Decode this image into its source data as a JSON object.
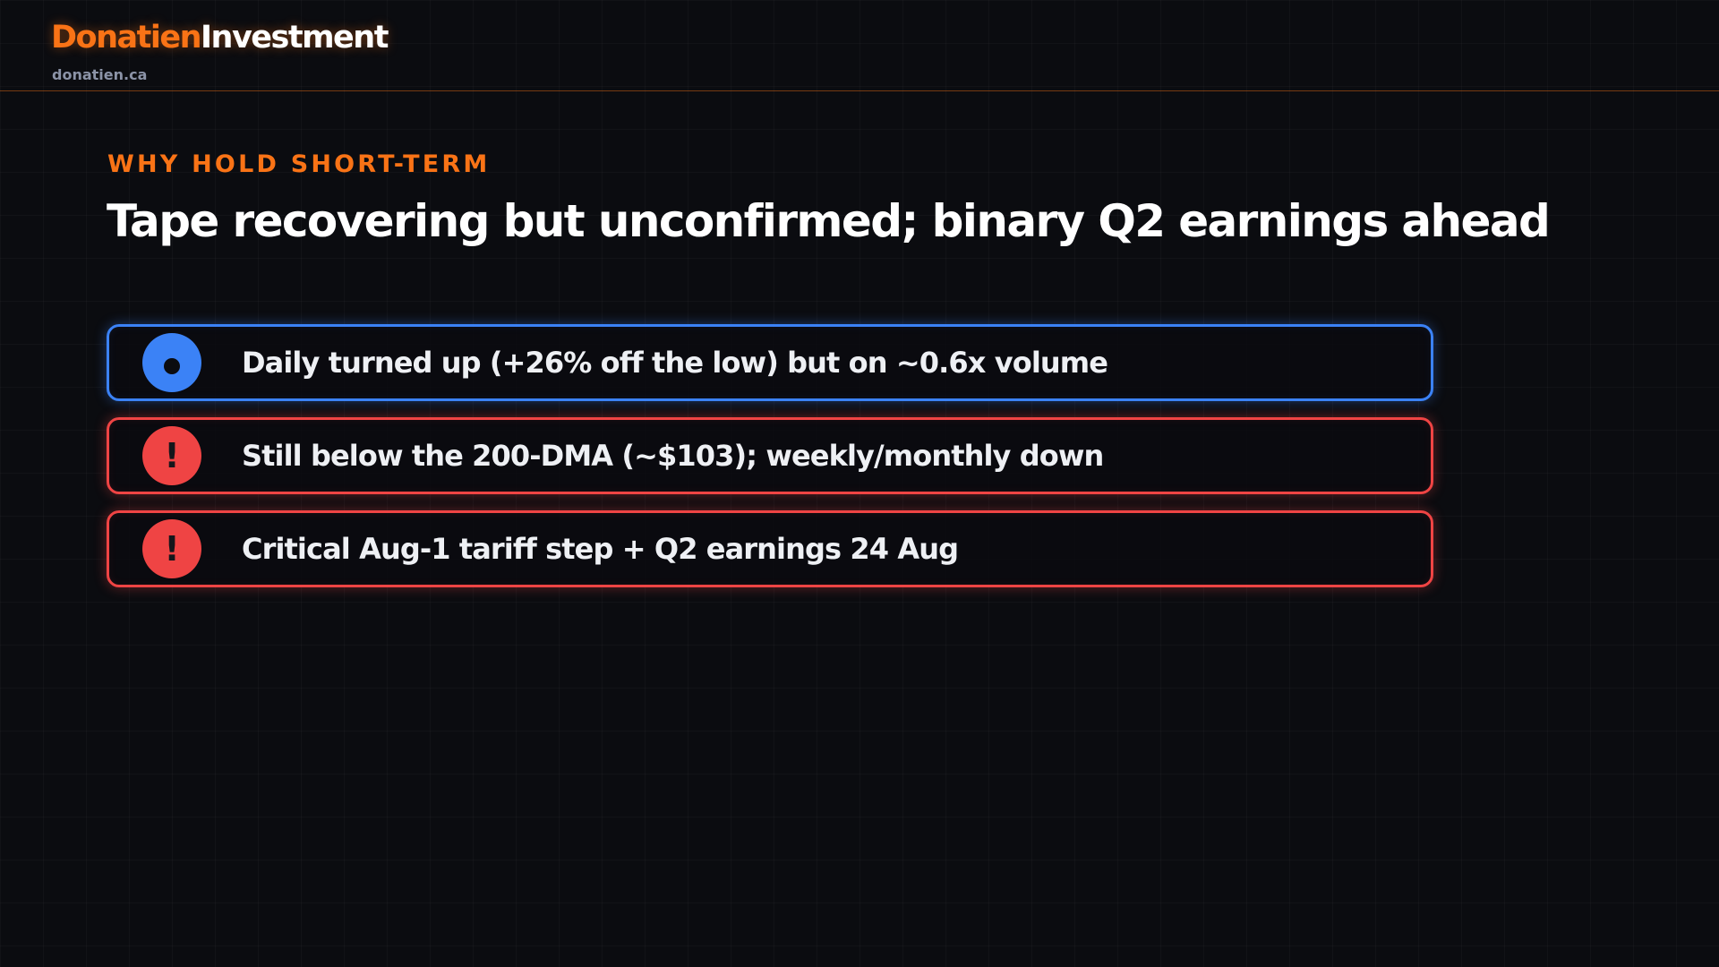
{
  "header": {
    "brand_primary": "Donatien",
    "brand_secondary": "Investment",
    "site": "donatien.ca"
  },
  "slide": {
    "eyebrow": "WHY HOLD SHORT-TERM",
    "title": "Tape recovering but unconfirmed; binary Q2 earnings ahead",
    "items": [
      {
        "kind": "info",
        "icon": "dot-icon",
        "text": "Daily turned up (+26% off the low) but on ~0.6x volume"
      },
      {
        "kind": "warning",
        "icon": "exclamation-icon",
        "symbol": "!",
        "text": "Still below the 200-DMA (~$103); weekly/monthly down"
      },
      {
        "kind": "warning",
        "icon": "exclamation-icon",
        "symbol": "!",
        "text": "Critical Aug-1 tariff step + Q2 earnings 24 Aug"
      }
    ]
  },
  "colors": {
    "accent": "#f97316",
    "info": "#3b82f6",
    "warning": "#ef4444",
    "background": "#0b0c10"
  }
}
